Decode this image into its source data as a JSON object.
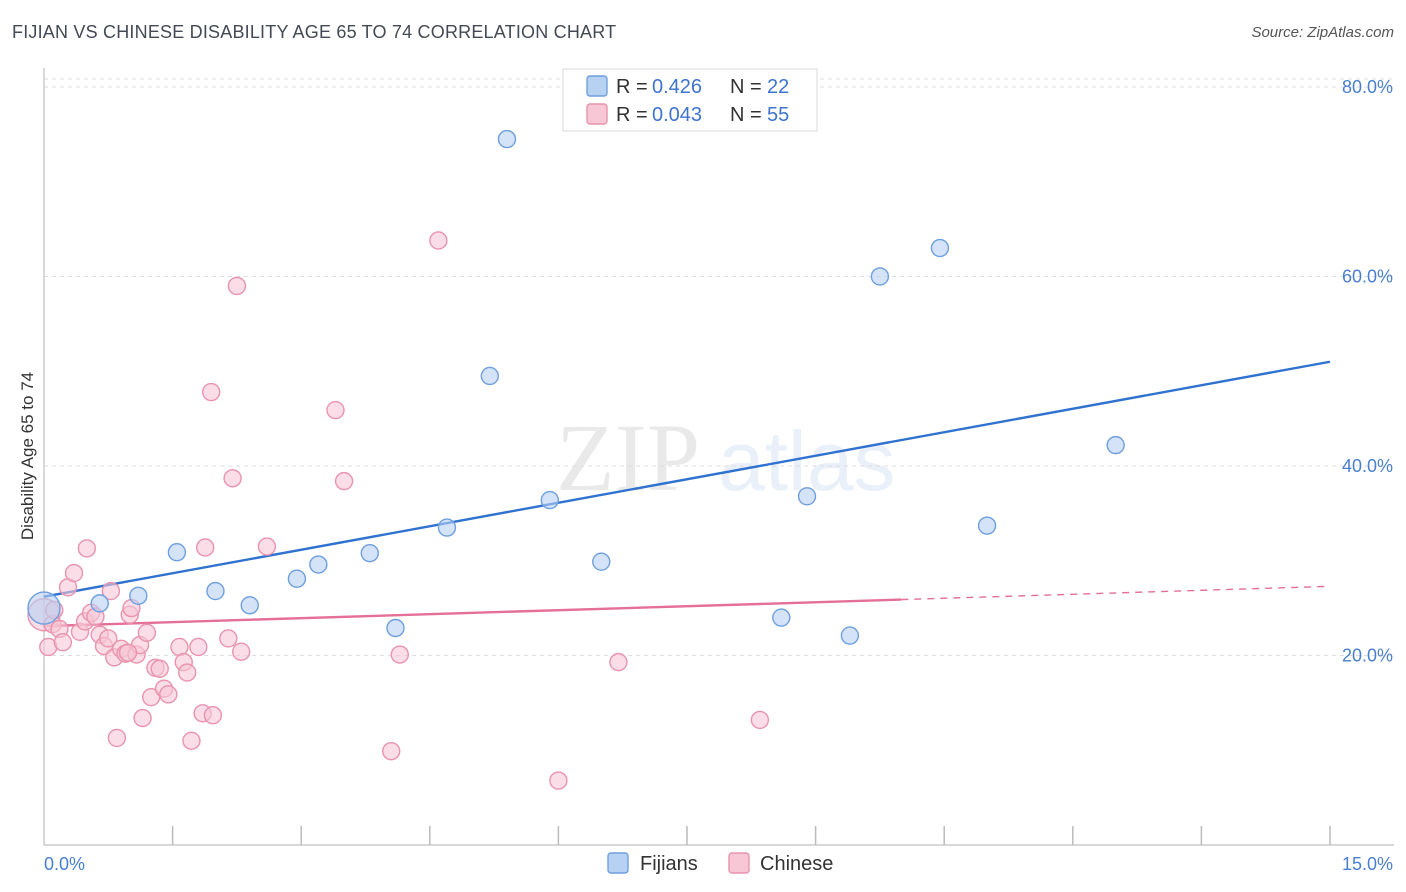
{
  "title": "FIJIAN VS CHINESE DISABILITY AGE 65 TO 74 CORRELATION CHART",
  "source": "Source: ZipAtlas.com",
  "watermark": {
    "part1": "ZIP",
    "part2": "atlas"
  },
  "colors": {
    "fijians_fill": "#b7d1f3",
    "fijians_stroke": "#6e9fde",
    "fijians_line": "#2f72d0",
    "chinese_fill": "#f7c7d6",
    "chinese_stroke": "#e993ae",
    "chinese_line": "#e46f97",
    "value_text": "#3e74cc",
    "grid": "#dddddd"
  },
  "legend_top": [
    {
      "series": "Fijians",
      "r_label": "R =",
      "r_value": "0.426",
      "n_label": "N =",
      "n_value": "22"
    },
    {
      "series": "Chinese",
      "r_label": "R =",
      "r_value": "0.043",
      "n_label": "N =",
      "n_value": "55"
    }
  ],
  "legend_bottom": [
    {
      "series": "Fijians",
      "label": "Fijians"
    },
    {
      "series": "Chinese",
      "label": "Chinese"
    }
  ],
  "chart_data": {
    "type": "scatter",
    "title": "FIJIAN VS CHINESE DISABILITY AGE 65 TO 74 CORRELATION CHART",
    "xlabel": "",
    "ylabel": "Disability Age 65 to 74",
    "xlim": [
      0,
      15
    ],
    "ylim": [
      0,
      82
    ],
    "x_tick_labels": [
      {
        "value": 0,
        "label": "0.0%"
      },
      {
        "value": 15,
        "label": "15.0%"
      }
    ],
    "x_minor_ticks": [
      1.5,
      3,
      4.5,
      6,
      7.5,
      9,
      10.5,
      12,
      13.5,
      15
    ],
    "y_ticks": [
      {
        "value": 20,
        "label": "20.0%"
      },
      {
        "value": 40,
        "label": "40.0%"
      },
      {
        "value": 60,
        "label": "60.0%"
      },
      {
        "value": 80,
        "label": "80.0%"
      }
    ],
    "grid": true,
    "legend_position": "top-center",
    "series": [
      {
        "name": "Fijians",
        "r": 0.426,
        "n": 22,
        "trend": {
          "x": [
            0,
            15
          ],
          "y": [
            26.2,
            51
          ],
          "solid_to": 15
        },
        "points": [
          {
            "x": 0.0,
            "y": 25.0,
            "big": true
          },
          {
            "x": 0.65,
            "y": 25.5
          },
          {
            "x": 1.1,
            "y": 26.3
          },
          {
            "x": 1.55,
            "y": 30.9
          },
          {
            "x": 2.0,
            "y": 26.8
          },
          {
            "x": 2.4,
            "y": 25.3
          },
          {
            "x": 2.95,
            "y": 28.1
          },
          {
            "x": 3.2,
            "y": 29.6
          },
          {
            "x": 3.8,
            "y": 30.8
          },
          {
            "x": 4.1,
            "y": 22.9
          },
          {
            "x": 4.7,
            "y": 33.5
          },
          {
            "x": 5.2,
            "y": 49.5
          },
          {
            "x": 5.4,
            "y": 74.5
          },
          {
            "x": 5.9,
            "y": 36.4
          },
          {
            "x": 6.5,
            "y": 29.9
          },
          {
            "x": 8.6,
            "y": 24.0
          },
          {
            "x": 8.9,
            "y": 36.8
          },
          {
            "x": 9.4,
            "y": 22.1
          },
          {
            "x": 9.75,
            "y": 60.0
          },
          {
            "x": 10.45,
            "y": 63.0
          },
          {
            "x": 11.0,
            "y": 33.7
          },
          {
            "x": 12.5,
            "y": 42.2
          }
        ]
      },
      {
        "name": "Chinese",
        "r": 0.043,
        "n": 55,
        "trend": {
          "x": [
            0,
            15
          ],
          "y": [
            23.1,
            27.3
          ],
          "solid_to": 10
        },
        "points": [
          {
            "x": 0.0,
            "y": 24.3,
            "big": true
          },
          {
            "x": 0.05,
            "y": 20.9
          },
          {
            "x": 0.1,
            "y": 23.3
          },
          {
            "x": 0.18,
            "y": 22.8
          },
          {
            "x": 0.22,
            "y": 21.4
          },
          {
            "x": 0.28,
            "y": 27.2
          },
          {
            "x": 0.35,
            "y": 28.7
          },
          {
            "x": 0.42,
            "y": 22.5
          },
          {
            "x": 0.48,
            "y": 23.6
          },
          {
            "x": 0.5,
            "y": 31.3
          },
          {
            "x": 0.55,
            "y": 24.5
          },
          {
            "x": 0.6,
            "y": 24.1
          },
          {
            "x": 0.65,
            "y": 22.2
          },
          {
            "x": 0.7,
            "y": 21.0
          },
          {
            "x": 0.75,
            "y": 21.8
          },
          {
            "x": 0.78,
            "y": 26.8
          },
          {
            "x": 0.82,
            "y": 19.8
          },
          {
            "x": 0.85,
            "y": 11.3
          },
          {
            "x": 0.9,
            "y": 20.7
          },
          {
            "x": 0.95,
            "y": 20.2
          },
          {
            "x": 1.0,
            "y": 24.3
          },
          {
            "x": 1.02,
            "y": 25.0
          },
          {
            "x": 1.08,
            "y": 20.1
          },
          {
            "x": 1.12,
            "y": 21.1
          },
          {
            "x": 1.15,
            "y": 13.4
          },
          {
            "x": 1.2,
            "y": 22.4
          },
          {
            "x": 1.25,
            "y": 15.6
          },
          {
            "x": 1.3,
            "y": 18.7
          },
          {
            "x": 1.35,
            "y": 18.6
          },
          {
            "x": 1.4,
            "y": 16.5
          },
          {
            "x": 1.45,
            "y": 15.9
          },
          {
            "x": 1.58,
            "y": 20.9
          },
          {
            "x": 1.63,
            "y": 19.3
          },
          {
            "x": 1.67,
            "y": 18.2
          },
          {
            "x": 1.72,
            "y": 11.0
          },
          {
            "x": 1.8,
            "y": 20.9
          },
          {
            "x": 1.85,
            "y": 13.9
          },
          {
            "x": 1.88,
            "y": 31.4
          },
          {
            "x": 1.95,
            "y": 47.8
          },
          {
            "x": 1.97,
            "y": 13.7
          },
          {
            "x": 2.15,
            "y": 21.8
          },
          {
            "x": 2.2,
            "y": 38.7
          },
          {
            "x": 2.25,
            "y": 59.0
          },
          {
            "x": 2.3,
            "y": 20.4
          },
          {
            "x": 2.6,
            "y": 31.5
          },
          {
            "x": 3.4,
            "y": 45.9
          },
          {
            "x": 3.5,
            "y": 38.4
          },
          {
            "x": 4.05,
            "y": 9.9
          },
          {
            "x": 4.15,
            "y": 20.1
          },
          {
            "x": 4.6,
            "y": 63.8
          },
          {
            "x": 6.0,
            "y": 6.8
          },
          {
            "x": 6.7,
            "y": 19.3
          },
          {
            "x": 8.35,
            "y": 13.2
          },
          {
            "x": 0.12,
            "y": 24.8
          },
          {
            "x": 0.98,
            "y": 20.3
          }
        ]
      }
    ]
  }
}
